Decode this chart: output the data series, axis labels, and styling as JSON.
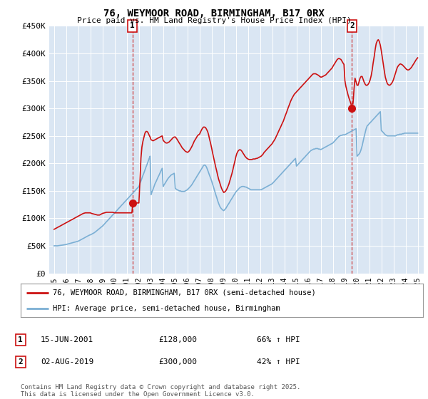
{
  "title": "76, WEYMOOR ROAD, BIRMINGHAM, B17 0RX",
  "subtitle": "Price paid vs. HM Land Registry's House Price Index (HPI)",
  "background_color": "#ffffff",
  "plot_bg_color": "#dae6f3",
  "grid_color": "#ffffff",
  "ylim": [
    0,
    450000
  ],
  "yticks": [
    0,
    50000,
    100000,
    150000,
    200000,
    250000,
    300000,
    350000,
    400000,
    450000
  ],
  "ytick_labels": [
    "£0",
    "£50K",
    "£100K",
    "£150K",
    "£200K",
    "£250K",
    "£300K",
    "£350K",
    "£400K",
    "£450K"
  ],
  "xlim_start": 1994.6,
  "xlim_end": 2025.5,
  "xticks": [
    1995,
    1996,
    1997,
    1998,
    1999,
    2000,
    2001,
    2002,
    2003,
    2004,
    2005,
    2006,
    2007,
    2008,
    2009,
    2010,
    2011,
    2012,
    2013,
    2014,
    2015,
    2016,
    2017,
    2018,
    2019,
    2020,
    2021,
    2022,
    2023,
    2024,
    2025
  ],
  "hpi_color": "#7bafd4",
  "price_color": "#cc1111",
  "marker_color": "#cc1111",
  "dashed_line_color": "#cc1111",
  "annotation_bg": "#ffffff",
  "annotation_border": "#cc1111",
  "purchase1_x": 2001.46,
  "purchase1_y": 128000,
  "purchase2_x": 2019.58,
  "purchase2_y": 300000,
  "legend_label_price": "76, WEYMOOR ROAD, BIRMINGHAM, B17 0RX (semi-detached house)",
  "legend_label_hpi": "HPI: Average price, semi-detached house, Birmingham",
  "note1_date": "15-JUN-2001",
  "note1_price": "£128,000",
  "note1_hpi": "66% ↑ HPI",
  "note2_date": "02-AUG-2019",
  "note2_price": "£300,000",
  "note2_hpi": "42% ↑ HPI",
  "footer": "Contains HM Land Registry data © Crown copyright and database right 2025.\nThis data is licensed under the Open Government Licence v3.0.",
  "hpi_data_x": [
    1995.0,
    1995.08,
    1995.17,
    1995.25,
    1995.33,
    1995.42,
    1995.5,
    1995.58,
    1995.67,
    1995.75,
    1995.83,
    1995.92,
    1996.0,
    1996.08,
    1996.17,
    1996.25,
    1996.33,
    1996.42,
    1996.5,
    1996.58,
    1996.67,
    1996.75,
    1996.83,
    1996.92,
    1997.0,
    1997.08,
    1997.17,
    1997.25,
    1997.33,
    1997.42,
    1997.5,
    1997.58,
    1997.67,
    1997.75,
    1997.83,
    1997.92,
    1998.0,
    1998.08,
    1998.17,
    1998.25,
    1998.33,
    1998.42,
    1998.5,
    1998.58,
    1998.67,
    1998.75,
    1998.83,
    1998.92,
    1999.0,
    1999.08,
    1999.17,
    1999.25,
    1999.33,
    1999.42,
    1999.5,
    1999.58,
    1999.67,
    1999.75,
    1999.83,
    1999.92,
    2000.0,
    2000.08,
    2000.17,
    2000.25,
    2000.33,
    2000.42,
    2000.5,
    2000.58,
    2000.67,
    2000.75,
    2000.83,
    2000.92,
    2001.0,
    2001.08,
    2001.17,
    2001.25,
    2001.33,
    2001.42,
    2001.5,
    2001.58,
    2001.67,
    2001.75,
    2001.83,
    2001.92,
    2002.0,
    2002.08,
    2002.17,
    2002.25,
    2002.33,
    2002.42,
    2002.5,
    2002.58,
    2002.67,
    2002.75,
    2002.83,
    2002.92,
    2003.0,
    2003.08,
    2003.17,
    2003.25,
    2003.33,
    2003.42,
    2003.5,
    2003.58,
    2003.67,
    2003.75,
    2003.83,
    2003.92,
    2004.0,
    2004.08,
    2004.17,
    2004.25,
    2004.33,
    2004.42,
    2004.5,
    2004.58,
    2004.67,
    2004.75,
    2004.83,
    2004.92,
    2005.0,
    2005.08,
    2005.17,
    2005.25,
    2005.33,
    2005.42,
    2005.5,
    2005.58,
    2005.67,
    2005.75,
    2005.83,
    2005.92,
    2006.0,
    2006.08,
    2006.17,
    2006.25,
    2006.33,
    2006.42,
    2006.5,
    2006.58,
    2006.67,
    2006.75,
    2006.83,
    2006.92,
    2007.0,
    2007.08,
    2007.17,
    2007.25,
    2007.33,
    2007.42,
    2007.5,
    2007.58,
    2007.67,
    2007.75,
    2007.83,
    2007.92,
    2008.0,
    2008.08,
    2008.17,
    2008.25,
    2008.33,
    2008.42,
    2008.5,
    2008.58,
    2008.67,
    2008.75,
    2008.83,
    2008.92,
    2009.0,
    2009.08,
    2009.17,
    2009.25,
    2009.33,
    2009.42,
    2009.5,
    2009.58,
    2009.67,
    2009.75,
    2009.83,
    2009.92,
    2010.0,
    2010.08,
    2010.17,
    2010.25,
    2010.33,
    2010.42,
    2010.5,
    2010.58,
    2010.67,
    2010.75,
    2010.83,
    2010.92,
    2011.0,
    2011.08,
    2011.17,
    2011.25,
    2011.33,
    2011.42,
    2011.5,
    2011.58,
    2011.67,
    2011.75,
    2011.83,
    2011.92,
    2012.0,
    2012.08,
    2012.17,
    2012.25,
    2012.33,
    2012.42,
    2012.5,
    2012.58,
    2012.67,
    2012.75,
    2012.83,
    2012.92,
    2013.0,
    2013.08,
    2013.17,
    2013.25,
    2013.33,
    2013.42,
    2013.5,
    2013.58,
    2013.67,
    2013.75,
    2013.83,
    2013.92,
    2014.0,
    2014.08,
    2014.17,
    2014.25,
    2014.33,
    2014.42,
    2014.5,
    2014.58,
    2014.67,
    2014.75,
    2014.83,
    2014.92,
    2015.0,
    2015.08,
    2015.17,
    2015.25,
    2015.33,
    2015.42,
    2015.5,
    2015.58,
    2015.67,
    2015.75,
    2015.83,
    2015.92,
    2016.0,
    2016.08,
    2016.17,
    2016.25,
    2016.33,
    2016.42,
    2016.5,
    2016.58,
    2016.67,
    2016.75,
    2016.83,
    2016.92,
    2017.0,
    2017.08,
    2017.17,
    2017.25,
    2017.33,
    2017.42,
    2017.5,
    2017.58,
    2017.67,
    2017.75,
    2017.83,
    2017.92,
    2018.0,
    2018.08,
    2018.17,
    2018.25,
    2018.33,
    2018.42,
    2018.5,
    2018.58,
    2018.67,
    2018.75,
    2018.83,
    2018.92,
    2019.0,
    2019.08,
    2019.17,
    2019.25,
    2019.33,
    2019.42,
    2019.5,
    2019.58,
    2019.67,
    2019.75,
    2019.83,
    2019.92,
    2020.0,
    2020.08,
    2020.17,
    2020.25,
    2020.33,
    2020.42,
    2020.5,
    2020.58,
    2020.67,
    2020.75,
    2020.83,
    2020.92,
    2021.0,
    2021.08,
    2021.17,
    2021.25,
    2021.33,
    2021.42,
    2021.5,
    2021.58,
    2021.67,
    2021.75,
    2021.83,
    2021.92,
    2022.0,
    2022.08,
    2022.17,
    2022.25,
    2022.33,
    2022.42,
    2022.5,
    2022.58,
    2022.67,
    2022.75,
    2022.83,
    2022.92,
    2023.0,
    2023.08,
    2023.17,
    2023.25,
    2023.33,
    2023.42,
    2023.5,
    2023.58,
    2023.67,
    2023.75,
    2023.83,
    2023.92,
    2024.0,
    2024.08,
    2024.17,
    2024.25,
    2024.33,
    2024.42,
    2024.5,
    2024.58,
    2024.67,
    2024.75,
    2024.83,
    2024.92,
    2025.0
  ],
  "hpi_data_y": [
    50000,
    50200,
    50100,
    50000,
    50300,
    50500,
    50800,
    51000,
    51200,
    51500,
    51800,
    52000,
    52500,
    53000,
    53500,
    54000,
    54500,
    55000,
    55500,
    56000,
    56500,
    57000,
    57500,
    58000,
    58500,
    59500,
    60500,
    61500,
    62500,
    63500,
    64500,
    65500,
    66500,
    67500,
    68500,
    69500,
    70000,
    71000,
    72000,
    73000,
    74000,
    75500,
    77000,
    78500,
    80000,
    81500,
    83000,
    84500,
    86000,
    88000,
    90000,
    92000,
    94000,
    96000,
    98000,
    100000,
    102000,
    104000,
    106000,
    108000,
    110000,
    112000,
    114000,
    116000,
    118000,
    120000,
    122000,
    124000,
    126000,
    128000,
    130000,
    132000,
    134000,
    136000,
    138000,
    140000,
    142000,
    144000,
    146000,
    148000,
    150000,
    152000,
    154000,
    156000,
    158000,
    163000,
    168000,
    173000,
    178000,
    183000,
    188000,
    193000,
    198000,
    203000,
    208000,
    213000,
    143000,
    148000,
    153000,
    158000,
    163000,
    167000,
    171000,
    175000,
    179000,
    183000,
    187000,
    191000,
    158000,
    161000,
    164000,
    167000,
    170000,
    173000,
    175000,
    177000,
    179000,
    180000,
    181000,
    182000,
    155000,
    153000,
    152000,
    151000,
    150000,
    150000,
    149000,
    149000,
    149000,
    149000,
    150000,
    151000,
    152000,
    154000,
    156000,
    158000,
    160000,
    163000,
    166000,
    169000,
    172000,
    175000,
    178000,
    181000,
    184000,
    187000,
    190000,
    193000,
    196000,
    197000,
    196000,
    193000,
    188000,
    183000,
    178000,
    173000,
    168000,
    162000,
    156000,
    150000,
    144000,
    138000,
    132000,
    127000,
    122000,
    119000,
    117000,
    115000,
    114000,
    116000,
    118000,
    121000,
    124000,
    127000,
    130000,
    133000,
    136000,
    139000,
    142000,
    145000,
    148000,
    150000,
    152000,
    154000,
    156000,
    157000,
    158000,
    158000,
    158000,
    157000,
    157000,
    156000,
    155000,
    154000,
    153000,
    152000,
    152000,
    152000,
    152000,
    152000,
    152000,
    152000,
    152000,
    152000,
    152000,
    152000,
    153000,
    154000,
    155000,
    156000,
    157000,
    158000,
    159000,
    160000,
    161000,
    162000,
    163000,
    165000,
    167000,
    169000,
    171000,
    173000,
    175000,
    177000,
    179000,
    181000,
    183000,
    185000,
    187000,
    189000,
    191000,
    193000,
    195000,
    197000,
    199000,
    201000,
    203000,
    205000,
    207000,
    209000,
    195000,
    197000,
    199000,
    201000,
    203000,
    205000,
    207000,
    209000,
    211000,
    213000,
    215000,
    217000,
    219000,
    221000,
    223000,
    224000,
    225000,
    226000,
    226000,
    227000,
    227000,
    227000,
    226000,
    226000,
    225000,
    226000,
    227000,
    228000,
    229000,
    230000,
    231000,
    232000,
    233000,
    234000,
    235000,
    236000,
    237000,
    239000,
    241000,
    243000,
    245000,
    247000,
    249000,
    250000,
    251000,
    251000,
    252000,
    252000,
    252000,
    253000,
    254000,
    255000,
    256000,
    257000,
    258000,
    259000,
    260000,
    261000,
    262000,
    263000,
    213000,
    215000,
    217000,
    220000,
    225000,
    232000,
    240000,
    248000,
    256000,
    263000,
    268000,
    270000,
    272000,
    274000,
    276000,
    278000,
    280000,
    282000,
    284000,
    286000,
    288000,
    290000,
    292000,
    294000,
    260000,
    258000,
    256000,
    254000,
    252000,
    251000,
    250000,
    250000,
    250000,
    250000,
    250000,
    250000,
    250000,
    250000,
    250000,
    251000,
    252000,
    252000,
    253000,
    253000,
    253000,
    254000,
    254000,
    255000,
    255000,
    255000,
    255000,
    255000,
    255000,
    255000,
    255000,
    255000,
    255000,
    255000,
    255000,
    255000,
    255000
  ],
  "price_data_x": [
    1995.0,
    1995.08,
    1995.17,
    1995.25,
    1995.33,
    1995.42,
    1995.5,
    1995.58,
    1995.67,
    1995.75,
    1995.83,
    1995.92,
    1996.0,
    1996.08,
    1996.17,
    1996.25,
    1996.33,
    1996.42,
    1996.5,
    1996.58,
    1996.67,
    1996.75,
    1996.83,
    1996.92,
    1997.0,
    1997.08,
    1997.17,
    1997.25,
    1997.33,
    1997.42,
    1997.5,
    1997.58,
    1997.67,
    1997.75,
    1997.83,
    1997.92,
    1998.0,
    1998.08,
    1998.17,
    1998.25,
    1998.33,
    1998.42,
    1998.5,
    1998.58,
    1998.67,
    1998.75,
    1998.83,
    1998.92,
    1999.0,
    1999.08,
    1999.17,
    1999.25,
    1999.33,
    1999.42,
    1999.5,
    1999.58,
    1999.67,
    1999.75,
    1999.83,
    1999.92,
    2000.0,
    2000.08,
    2000.17,
    2000.25,
    2000.33,
    2000.42,
    2000.5,
    2000.58,
    2000.67,
    2000.75,
    2000.83,
    2000.92,
    2001.0,
    2001.08,
    2001.17,
    2001.25,
    2001.33,
    2001.42,
    2001.5,
    2001.58,
    2001.67,
    2001.75,
    2001.83,
    2001.92,
    2002.0,
    2002.08,
    2002.17,
    2002.25,
    2002.33,
    2002.42,
    2002.5,
    2002.58,
    2002.67,
    2002.75,
    2002.83,
    2002.92,
    2003.0,
    2003.08,
    2003.17,
    2003.25,
    2003.33,
    2003.42,
    2003.5,
    2003.58,
    2003.67,
    2003.75,
    2003.83,
    2003.92,
    2004.0,
    2004.08,
    2004.17,
    2004.25,
    2004.33,
    2004.42,
    2004.5,
    2004.58,
    2004.67,
    2004.75,
    2004.83,
    2004.92,
    2005.0,
    2005.08,
    2005.17,
    2005.25,
    2005.33,
    2005.42,
    2005.5,
    2005.58,
    2005.67,
    2005.75,
    2005.83,
    2005.92,
    2006.0,
    2006.08,
    2006.17,
    2006.25,
    2006.33,
    2006.42,
    2006.5,
    2006.58,
    2006.67,
    2006.75,
    2006.83,
    2006.92,
    2007.0,
    2007.08,
    2007.17,
    2007.25,
    2007.33,
    2007.42,
    2007.5,
    2007.58,
    2007.67,
    2007.75,
    2007.83,
    2007.92,
    2008.0,
    2008.08,
    2008.17,
    2008.25,
    2008.33,
    2008.42,
    2008.5,
    2008.58,
    2008.67,
    2008.75,
    2008.83,
    2008.92,
    2009.0,
    2009.08,
    2009.17,
    2009.25,
    2009.33,
    2009.42,
    2009.5,
    2009.58,
    2009.67,
    2009.75,
    2009.83,
    2009.92,
    2010.0,
    2010.08,
    2010.17,
    2010.25,
    2010.33,
    2010.42,
    2010.5,
    2010.58,
    2010.67,
    2010.75,
    2010.83,
    2010.92,
    2011.0,
    2011.08,
    2011.17,
    2011.25,
    2011.33,
    2011.42,
    2011.5,
    2011.58,
    2011.67,
    2011.75,
    2011.83,
    2011.92,
    2012.0,
    2012.08,
    2012.17,
    2012.25,
    2012.33,
    2012.42,
    2012.5,
    2012.58,
    2012.67,
    2012.75,
    2012.83,
    2012.92,
    2013.0,
    2013.08,
    2013.17,
    2013.25,
    2013.33,
    2013.42,
    2013.5,
    2013.58,
    2013.67,
    2013.75,
    2013.83,
    2013.92,
    2014.0,
    2014.08,
    2014.17,
    2014.25,
    2014.33,
    2014.42,
    2014.5,
    2014.58,
    2014.67,
    2014.75,
    2014.83,
    2014.92,
    2015.0,
    2015.08,
    2015.17,
    2015.25,
    2015.33,
    2015.42,
    2015.5,
    2015.58,
    2015.67,
    2015.75,
    2015.83,
    2015.92,
    2016.0,
    2016.08,
    2016.17,
    2016.25,
    2016.33,
    2016.42,
    2016.5,
    2016.58,
    2016.67,
    2016.75,
    2016.83,
    2016.92,
    2017.0,
    2017.08,
    2017.17,
    2017.25,
    2017.33,
    2017.42,
    2017.5,
    2017.58,
    2017.67,
    2017.75,
    2017.83,
    2017.92,
    2018.0,
    2018.08,
    2018.17,
    2018.25,
    2018.33,
    2018.42,
    2018.5,
    2018.58,
    2018.67,
    2018.75,
    2018.83,
    2018.92,
    2019.0,
    2019.08,
    2019.17,
    2019.25,
    2019.33,
    2019.42,
    2019.5,
    2019.58,
    2019.67,
    2019.75,
    2019.83,
    2019.92,
    2020.0,
    2020.08,
    2020.17,
    2020.25,
    2020.33,
    2020.42,
    2020.5,
    2020.58,
    2020.67,
    2020.75,
    2020.83,
    2020.92,
    2021.0,
    2021.08,
    2021.17,
    2021.25,
    2021.33,
    2021.42,
    2021.5,
    2021.58,
    2021.67,
    2021.75,
    2021.83,
    2021.92,
    2022.0,
    2022.08,
    2022.17,
    2022.25,
    2022.33,
    2022.42,
    2022.5,
    2022.58,
    2022.67,
    2022.75,
    2022.83,
    2022.92,
    2023.0,
    2023.08,
    2023.17,
    2023.25,
    2023.33,
    2023.42,
    2023.5,
    2023.58,
    2023.67,
    2023.75,
    2023.83,
    2023.92,
    2024.0,
    2024.08,
    2024.17,
    2024.25,
    2024.33,
    2024.42,
    2024.5,
    2024.58,
    2024.67,
    2024.75,
    2024.83,
    2024.92,
    2025.0
  ],
  "price_data_y": [
    80000,
    81000,
    82000,
    83000,
    84000,
    85000,
    86000,
    87000,
    88000,
    89000,
    90000,
    91000,
    92000,
    93000,
    94000,
    95000,
    96000,
    97000,
    98000,
    99000,
    100000,
    101000,
    102000,
    103000,
    104000,
    105000,
    106000,
    107000,
    108000,
    109000,
    109500,
    110000,
    110000,
    110000,
    110000,
    110000,
    110000,
    109000,
    108500,
    108000,
    107500,
    107000,
    106500,
    106000,
    106000,
    106000,
    107000,
    108000,
    109000,
    109500,
    110000,
    110500,
    111000,
    111000,
    111000,
    111000,
    111000,
    111000,
    111000,
    110500,
    110000,
    110000,
    110000,
    110000,
    110000,
    110000,
    110000,
    110000,
    110000,
    110000,
    110000,
    110000,
    110000,
    110000,
    110000,
    110000,
    110000,
    110000,
    128000,
    128000,
    128000,
    128000,
    128000,
    128000,
    128000,
    165000,
    210000,
    230000,
    240000,
    248000,
    255000,
    258000,
    258000,
    256000,
    252000,
    248000,
    243000,
    242000,
    241000,
    242000,
    243000,
    244000,
    245000,
    246000,
    247000,
    248000,
    249000,
    250000,
    242000,
    240000,
    238000,
    237000,
    237000,
    238000,
    239000,
    241000,
    243000,
    245000,
    247000,
    248000,
    248000,
    246000,
    243000,
    240000,
    237000,
    234000,
    231000,
    228000,
    226000,
    224000,
    222000,
    221000,
    220000,
    221000,
    223000,
    226000,
    229000,
    233000,
    237000,
    241000,
    244000,
    247000,
    250000,
    252000,
    253000,
    257000,
    261000,
    264000,
    266000,
    266000,
    265000,
    262000,
    258000,
    252000,
    244000,
    236000,
    228000,
    219000,
    210000,
    202000,
    194000,
    186000,
    178000,
    171000,
    165000,
    159000,
    154000,
    150000,
    147000,
    148000,
    150000,
    153000,
    157000,
    162000,
    168000,
    174000,
    181000,
    188000,
    196000,
    204000,
    212000,
    218000,
    222000,
    224000,
    225000,
    224000,
    222000,
    219000,
    216000,
    213000,
    211000,
    209000,
    208000,
    207000,
    207000,
    207000,
    207000,
    208000,
    208000,
    208000,
    209000,
    209000,
    210000,
    211000,
    212000,
    213000,
    215000,
    217000,
    220000,
    222000,
    224000,
    226000,
    228000,
    230000,
    232000,
    234000,
    236000,
    239000,
    242000,
    245000,
    249000,
    253000,
    257000,
    261000,
    265000,
    269000,
    273000,
    277000,
    282000,
    287000,
    292000,
    297000,
    302000,
    307000,
    312000,
    316000,
    320000,
    323000,
    326000,
    328000,
    330000,
    332000,
    334000,
    336000,
    338000,
    340000,
    342000,
    344000,
    346000,
    348000,
    350000,
    352000,
    354000,
    356000,
    358000,
    360000,
    362000,
    363000,
    363000,
    363000,
    362000,
    361000,
    360000,
    358000,
    357000,
    357000,
    358000,
    359000,
    360000,
    361000,
    363000,
    365000,
    367000,
    369000,
    371000,
    373000,
    376000,
    379000,
    382000,
    385000,
    388000,
    390000,
    391000,
    390000,
    389000,
    386000,
    383000,
    380000,
    350000,
    340000,
    332000,
    325000,
    319000,
    313000,
    308000,
    300000,
    310000,
    335000,
    355000,
    348000,
    342000,
    342000,
    349000,
    355000,
    358000,
    358000,
    353000,
    348000,
    344000,
    342000,
    342000,
    344000,
    347000,
    352000,
    360000,
    370000,
    383000,
    395000,
    408000,
    418000,
    423000,
    425000,
    422000,
    415000,
    405000,
    393000,
    380000,
    368000,
    357000,
    350000,
    345000,
    343000,
    342000,
    343000,
    345000,
    348000,
    352000,
    358000,
    364000,
    370000,
    375000,
    378000,
    380000,
    381000,
    380000,
    379000,
    377000,
    375000,
    373000,
    371000,
    370000,
    370000,
    371000,
    373000,
    375000,
    378000,
    381000,
    384000,
    387000,
    390000,
    392000
  ]
}
